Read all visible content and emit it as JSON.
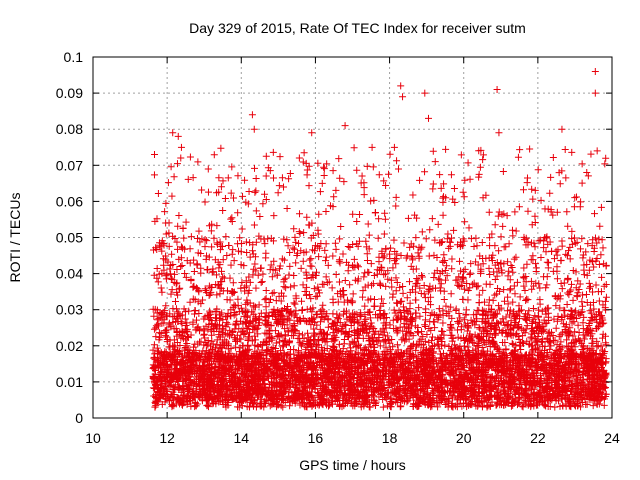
{
  "chart_data": {
    "type": "scatter",
    "title": "Day 329 of 2015, Rate Of TEC Index for receiver sutm",
    "xlabel": "GPS time / hours",
    "ylabel": "ROTI / TECUs",
    "xlim": [
      10,
      24
    ],
    "ylim": [
      0,
      0.1
    ],
    "xticks": [
      "10",
      "12",
      "14",
      "16",
      "18",
      "20",
      "22",
      "24"
    ],
    "yticks": [
      "0",
      "0.01",
      "0.02",
      "0.03",
      "0.04",
      "0.05",
      "0.06",
      "0.07",
      "0.08",
      "0.09",
      "0.1"
    ],
    "grid": true,
    "marker": "+",
    "color": "#e8000b",
    "series": [
      {
        "x_start": 11.62,
        "x_end": 23.85,
        "point_count": 7000,
        "typical_range": [
          0.003,
          0.06
        ],
        "notable_points": [
          {
            "x": 12.15,
            "y": 0.079
          },
          {
            "x": 12.3,
            "y": 0.078
          },
          {
            "x": 14.3,
            "y": 0.084
          },
          {
            "x": 14.35,
            "y": 0.08
          },
          {
            "x": 15.9,
            "y": 0.079
          },
          {
            "x": 16.8,
            "y": 0.081
          },
          {
            "x": 18.3,
            "y": 0.092
          },
          {
            "x": 18.35,
            "y": 0.089
          },
          {
            "x": 18.95,
            "y": 0.09
          },
          {
            "x": 19.05,
            "y": 0.083
          },
          {
            "x": 20.9,
            "y": 0.091
          },
          {
            "x": 20.95,
            "y": 0.079
          },
          {
            "x": 22.65,
            "y": 0.08
          },
          {
            "x": 23.55,
            "y": 0.096
          },
          {
            "x": 23.55,
            "y": 0.09
          },
          {
            "x": 23.6,
            "y": 0.074
          }
        ]
      }
    ]
  }
}
